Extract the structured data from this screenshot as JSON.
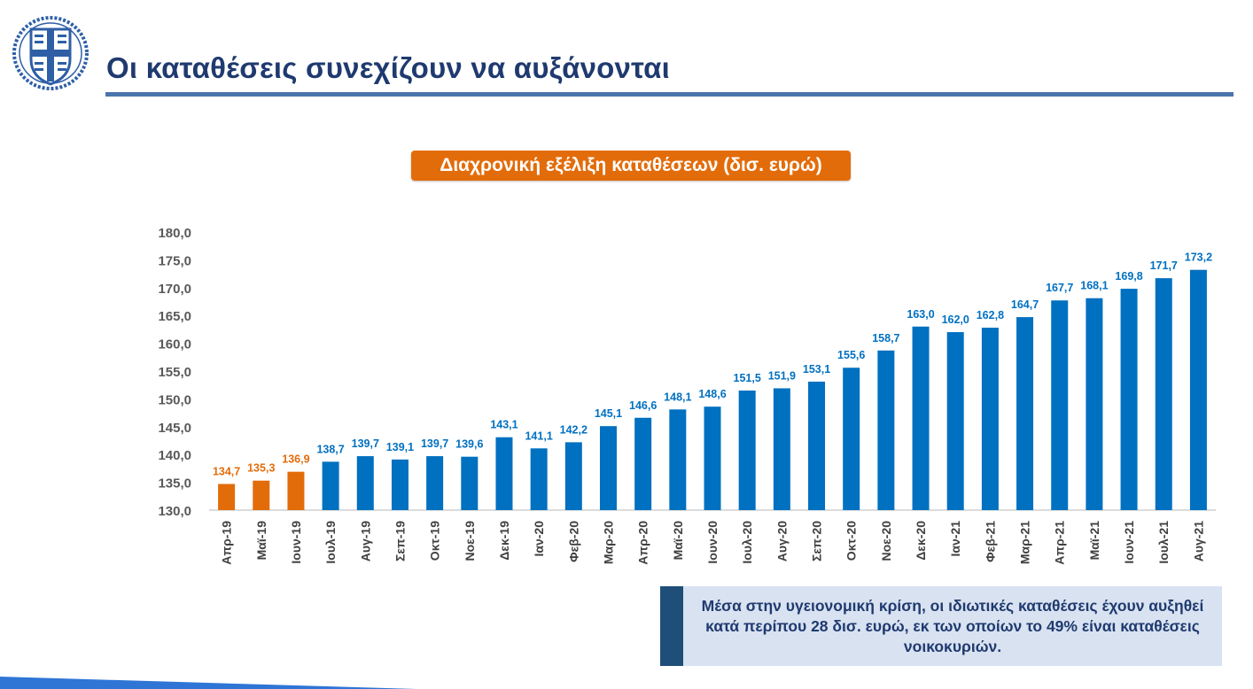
{
  "header": {
    "title": "Οι καταθέσεις συνεχίζουν να αυξάνονται"
  },
  "chart_data": {
    "type": "bar",
    "title": "Διαχρονική εξέλιξη καταθέσεων (δισ. ευρώ)",
    "xlabel": "",
    "ylabel": "",
    "ylim": [
      130,
      180
    ],
    "yticks": [
      "130,0",
      "135,0",
      "140,0",
      "145,0",
      "150,0",
      "155,0",
      "160,0",
      "165,0",
      "170,0",
      "175,0",
      "180,0"
    ],
    "categories": [
      "Απρ-19",
      "Μαϊ-19",
      "Ιουν-19",
      "Ιουλ-19",
      "Αυγ-19",
      "Σεπ-19",
      "Οκτ-19",
      "Νοε-19",
      "Δεκ-19",
      "Ιαν-20",
      "Φεβ-20",
      "Μαρ-20",
      "Απρ-20",
      "Μαϊ-20",
      "Ιουν-20",
      "Ιουλ-20",
      "Αυγ-20",
      "Σεπ-20",
      "Οκτ-20",
      "Νοε-20",
      "Δεκ-20",
      "Ιαν-21",
      "Φεβ-21",
      "Μαρ-21",
      "Απρ-21",
      "Μαϊ-21",
      "Ιουν-21",
      "Ιουλ-21",
      "Αυγ-21"
    ],
    "values": [
      134.7,
      135.3,
      136.9,
      138.7,
      139.7,
      139.1,
      139.7,
      139.6,
      143.1,
      141.1,
      142.2,
      145.1,
      146.6,
      148.1,
      148.6,
      151.5,
      151.9,
      153.1,
      155.6,
      158.7,
      163.0,
      162.0,
      162.8,
      164.7,
      167.7,
      168.1,
      169.8,
      171.7,
      173.2
    ],
    "labels": [
      "134,7",
      "135,3",
      "136,9",
      "138,7",
      "139,7",
      "139,1",
      "139,7",
      "139,6",
      "143,1",
      "141,1",
      "142,2",
      "145,1",
      "146,6",
      "148,1",
      "148,6",
      "151,5",
      "151,9",
      "153,1",
      "155,6",
      "158,7",
      "163,0",
      "162,0",
      "162,8",
      "164,7",
      "167,7",
      "168,1",
      "169,8",
      "171,7",
      "173,2"
    ],
    "highlight_count": 3,
    "colors": {
      "highlight": "#e36c0a",
      "default": "#0070c0"
    }
  },
  "callout": {
    "text": "Μέσα στην υγειονομική κρίση, οι ιδιωτικές καταθέσεις έχουν αυξηθεί κατά περίπου 28 δισ. ευρώ, εκ των οποίων το 49% είναι καταθέσεις νοικοκυριών."
  }
}
